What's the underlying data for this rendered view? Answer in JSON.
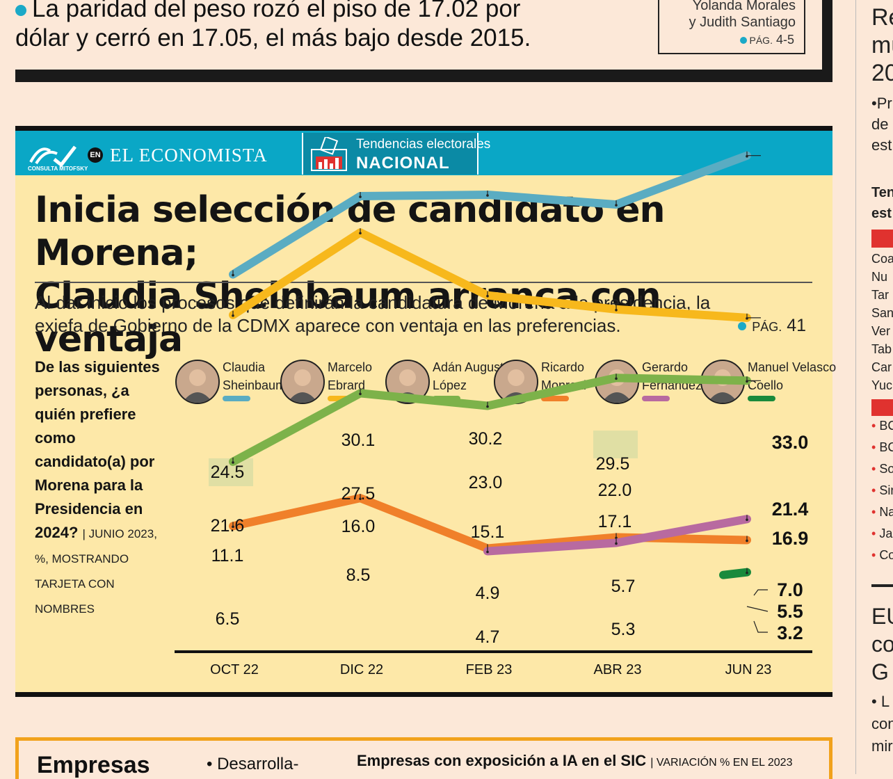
{
  "top": {
    "headline_line1": "La paridad del peso rozó el piso de 17.02 por",
    "headline_line2": "dólar y cerró en 17.05, el más bajo desde 2015.",
    "authors_line1": "Yolanda Morales",
    "authors_line2": "y Judith Santiago",
    "pag_label": "PÁG.",
    "pag_value": "4-5"
  },
  "header": {
    "brand_small": "CONSULTA MITOFSKY",
    "brand_en": "EN",
    "brand_name": "EL ECONOMISTA",
    "section_sub": "Tendencias electorales",
    "section_main": "NACIONAL"
  },
  "article": {
    "title_line1": "Inicia selección de candidato en Morena;",
    "title_line2": "Claudia Sheinbaum arranca con ventaja",
    "dek_line1": "Al dar inicio los procesos que definirán la candidatura de Morena a la presidencia, la",
    "dek_line2": "exjefa de Gobierno de la CDMX aparece con ventaja en las preferencias.",
    "dek_pag_label": "PÁG.",
    "dek_pag_value": "41",
    "question": "De las siguientes personas, ¿a quién prefiere como candidato(a) por Morena para la Presidencia en 2024?",
    "question_note": "| JUNIO 2023, %, MOSTRANDO TARJETA CON NOMBRES"
  },
  "chart_data": {
    "type": "line",
    "categories": [
      "OCT 22",
      "DIC 22",
      "FEB 23",
      "ABR 23",
      "JUN 23"
    ],
    "series": [
      {
        "name": "Claudia Sheinbaum",
        "name_line1": "Claudia",
        "name_line2": "Sheinbaum",
        "color": "#5aacc2",
        "values": [
          24.5,
          30.1,
          30.2,
          29.5,
          33.0
        ],
        "labels": [
          "24.5",
          "30.1",
          "30.2",
          "29.5",
          "33.0"
        ]
      },
      {
        "name": "Marcelo Ebrard",
        "name_line1": "Marcelo",
        "name_line2": "Ebrard",
        "color": "#f7b81c",
        "values": [
          21.6,
          27.5,
          23.0,
          22.0,
          21.4
        ],
        "labels": [
          "21.6",
          "27.5",
          "23.0",
          "22.0",
          "21.4"
        ]
      },
      {
        "name": "Adán Augusto López",
        "name_line1": "Adán Augusto",
        "name_line2": "López",
        "color": "#7db24a",
        "values": [
          11.1,
          16.0,
          15.1,
          17.1,
          16.9
        ],
        "labels": [
          "11.1",
          "16.0",
          "15.1",
          "17.1",
          "16.9"
        ]
      },
      {
        "name": "Ricardo Monreal",
        "name_line1": "Ricardo",
        "name_line2": "Monreal",
        "color": "#f0802a",
        "values": [
          6.5,
          8.5,
          4.9,
          5.7,
          5.5
        ],
        "labels": [
          "6.5",
          "8.5",
          "4.9",
          "5.7",
          "5.5"
        ]
      },
      {
        "name": "Gerardo Fernández",
        "name_line1": "Gerardo",
        "name_line2": "Fernández",
        "color": "#b86aa0",
        "values": [
          null,
          null,
          4.7,
          5.3,
          7.0
        ],
        "labels": [
          "",
          "",
          "4.7",
          "5.3",
          "7.0"
        ]
      },
      {
        "name": "Manuel Velasco Coello",
        "name_line1": "Manuel Velasco",
        "name_line2": "Coello",
        "color": "#1a8a3c",
        "values": [
          null,
          null,
          null,
          null,
          3.2
        ],
        "labels": [
          "",
          "",
          "",
          "",
          "3.2"
        ]
      }
    ],
    "xlabel": "",
    "ylabel": "",
    "grid": false
  },
  "bottom": {
    "section": "Empresas",
    "bullet": "• Desarrolla-",
    "chart_title": "Empresas con exposición a IA en el SIC",
    "chart_note": "| VARIACIÓN % EN EL 2023"
  },
  "right_col": {
    "h1": [
      "Re",
      "mu",
      "20"
    ],
    "p1": [
      "•Pr",
      "de",
      "est"
    ],
    "h2": [
      "Ten",
      "est"
    ],
    "list1": [
      "Coa",
      "Nu",
      "Tar",
      "San",
      "Ver",
      "Tab",
      "Car",
      "Yuc"
    ],
    "list2": [
      "BC",
      "BC",
      "So",
      "Sir",
      "Na",
      "Jal",
      "Co"
    ],
    "h3": [
      "EU",
      "co",
      "G"
    ],
    "p3": [
      "• L",
      "con",
      "mir"
    ]
  }
}
